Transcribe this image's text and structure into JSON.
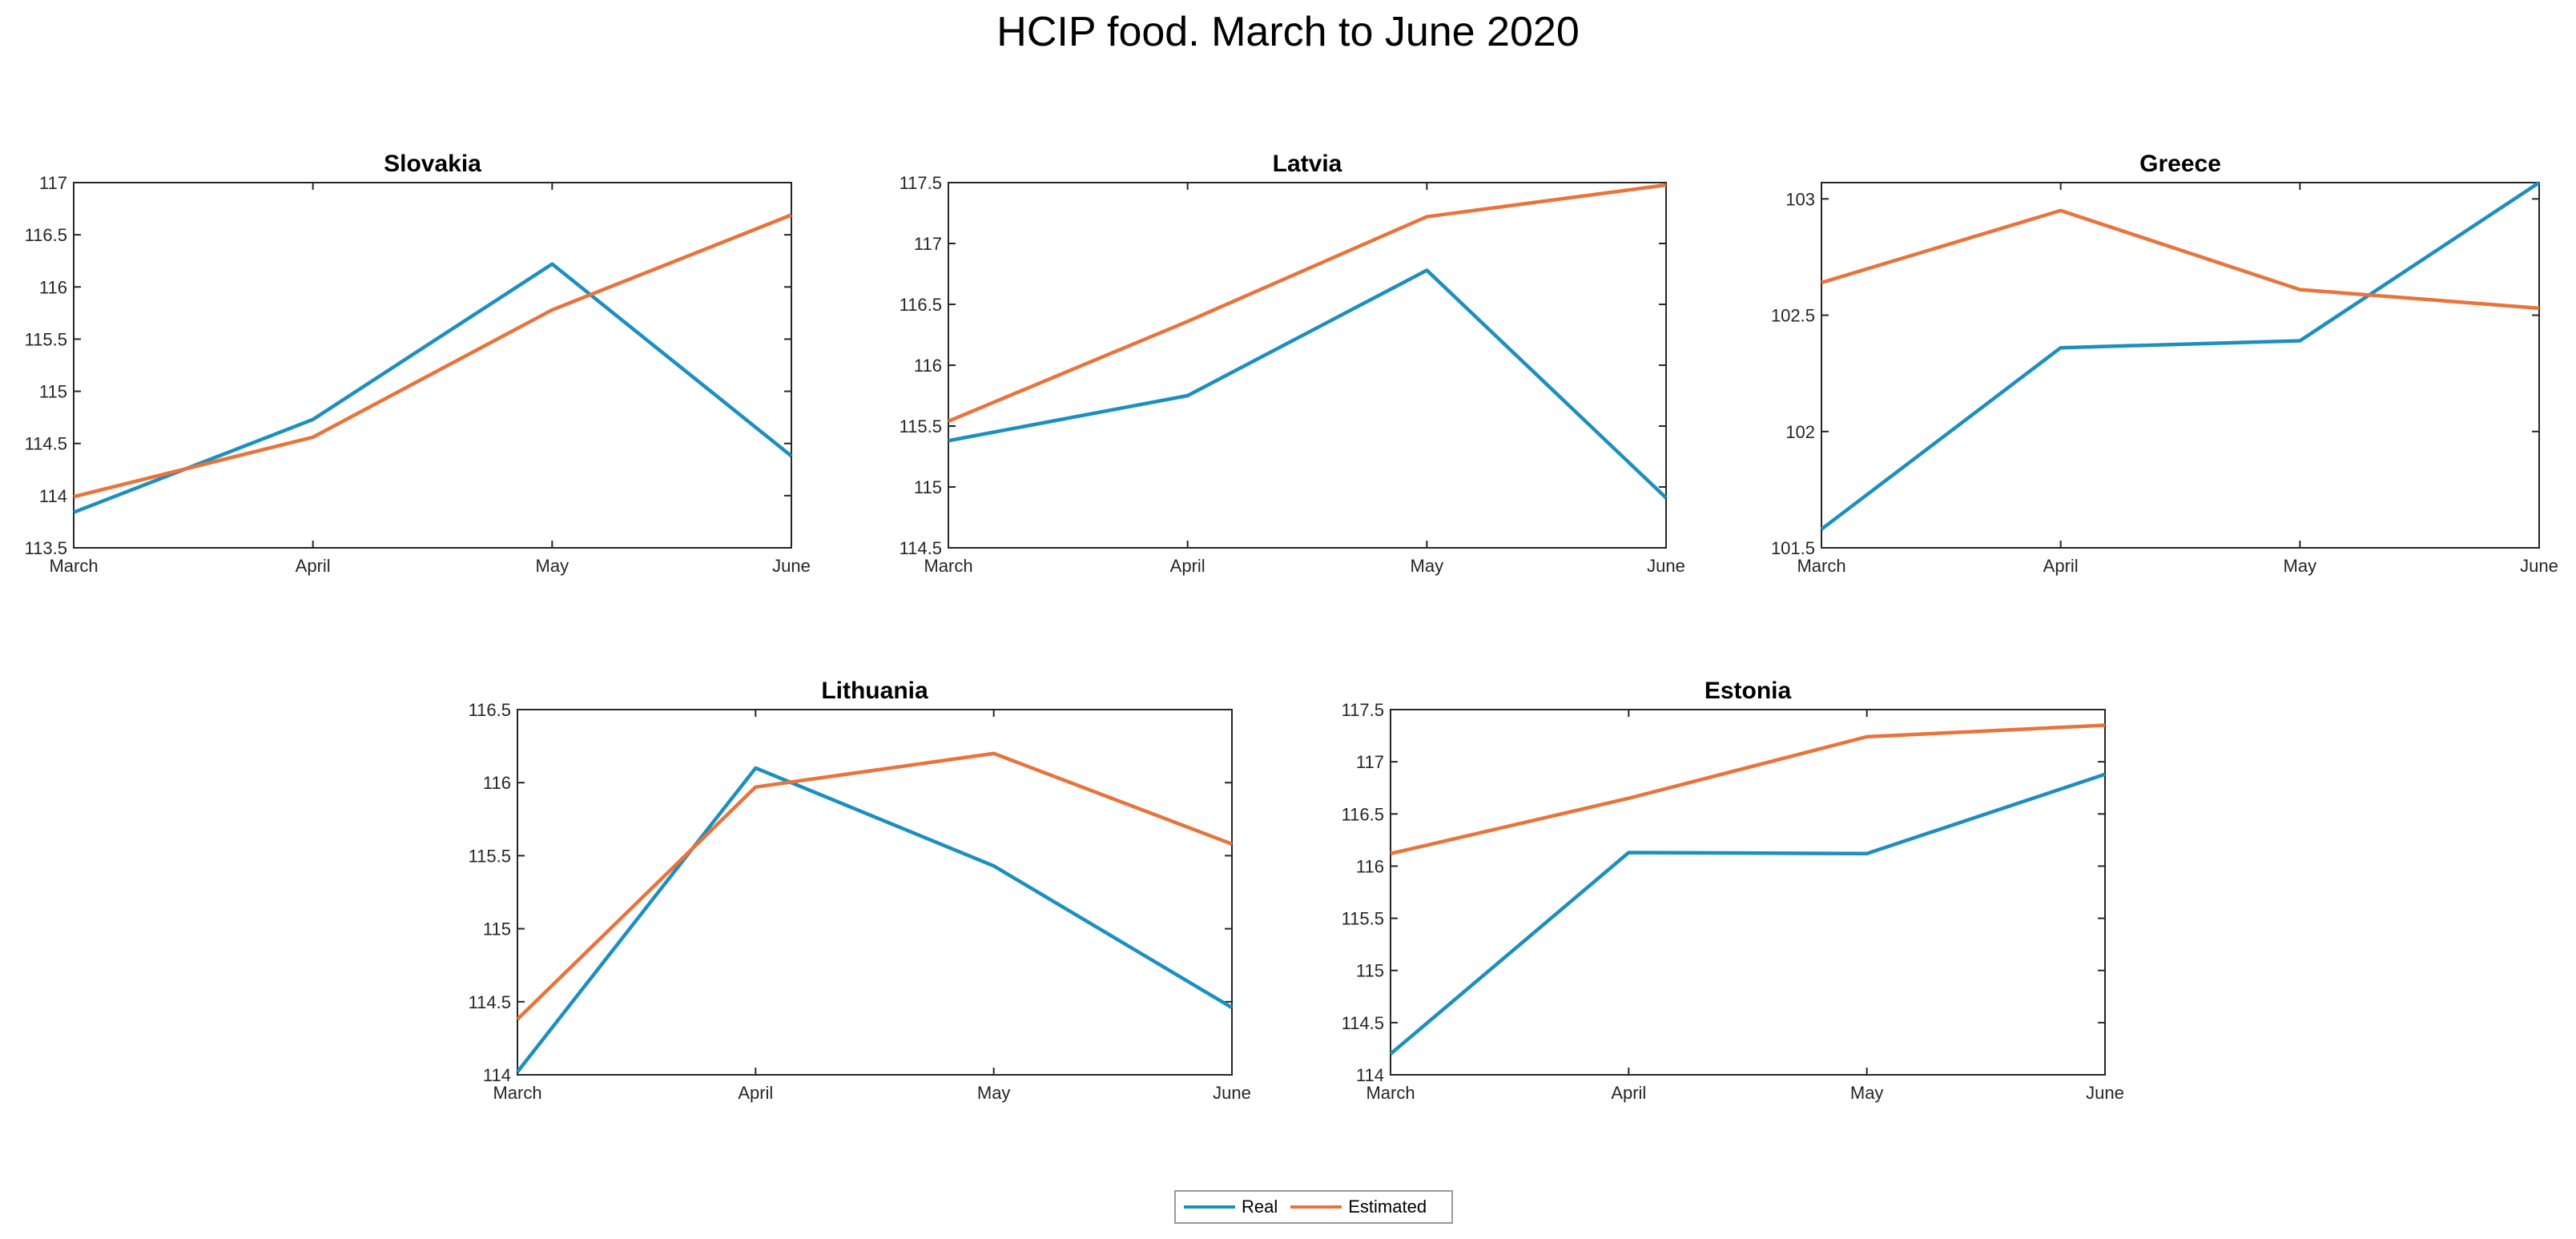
{
  "title": "HCIP food. March to June 2020",
  "colors": {
    "real": "#1d8fbf",
    "estimated": "#e8743b"
  },
  "legend": {
    "real": "Real",
    "estimated": "Estimated"
  },
  "chart_data": [
    {
      "type": "line",
      "title": "Slovakia",
      "categories": [
        "March",
        "April",
        "May",
        "June"
      ],
      "series": [
        {
          "name": "Real",
          "values": [
            113.84,
            114.73,
            116.22,
            114.38
          ]
        },
        {
          "name": "Estimated",
          "values": [
            113.99,
            114.56,
            115.78,
            116.69
          ]
        }
      ],
      "ylim": [
        113.5,
        117
      ],
      "yticks": [
        "113.5",
        "114",
        "114.5",
        "115",
        "115.5",
        "116",
        "116.5",
        "117"
      ]
    },
    {
      "type": "line",
      "title": "Latvia",
      "categories": [
        "March",
        "April",
        "May",
        "June"
      ],
      "series": [
        {
          "name": "Real",
          "values": [
            115.38,
            115.75,
            116.78,
            114.91
          ]
        },
        {
          "name": "Estimated",
          "values": [
            115.54,
            116.36,
            117.22,
            117.48
          ]
        }
      ],
      "ylim": [
        114.5,
        117.5
      ],
      "yticks": [
        "114.5",
        "115",
        "115.5",
        "116",
        "116.5",
        "117",
        "117.5"
      ]
    },
    {
      "type": "line",
      "title": "Greece",
      "categories": [
        "March",
        "April",
        "May",
        "June"
      ],
      "series": [
        {
          "name": "Real",
          "values": [
            101.58,
            102.36,
            102.39,
            103.07
          ]
        },
        {
          "name": "Estimated",
          "values": [
            102.64,
            102.95,
            102.61,
            102.53
          ]
        }
      ],
      "ylim": [
        101.5,
        103.07
      ],
      "yticks": [
        "101.5",
        "102",
        "102.5",
        "103"
      ]
    },
    {
      "type": "line",
      "title": "Lithuania",
      "categories": [
        "March",
        "April",
        "May",
        "June"
      ],
      "series": [
        {
          "name": "Real",
          "values": [
            114.02,
            116.1,
            115.43,
            114.46
          ]
        },
        {
          "name": "Estimated",
          "values": [
            114.38,
            115.97,
            116.2,
            115.58
          ]
        }
      ],
      "ylim": [
        114,
        116.5
      ],
      "yticks": [
        "114",
        "114.5",
        "115",
        "115.5",
        "116",
        "116.5"
      ]
    },
    {
      "type": "line",
      "title": "Estonia",
      "categories": [
        "March",
        "April",
        "May",
        "June"
      ],
      "series": [
        {
          "name": "Real",
          "values": [
            114.2,
            116.13,
            116.12,
            116.88
          ]
        },
        {
          "name": "Estimated",
          "values": [
            116.12,
            116.65,
            117.24,
            117.35
          ]
        }
      ],
      "ylim": [
        114,
        117.5
      ],
      "yticks": [
        "114",
        "114.5",
        "115",
        "115.5",
        "116",
        "116.5",
        "117",
        "117.5"
      ]
    }
  ]
}
